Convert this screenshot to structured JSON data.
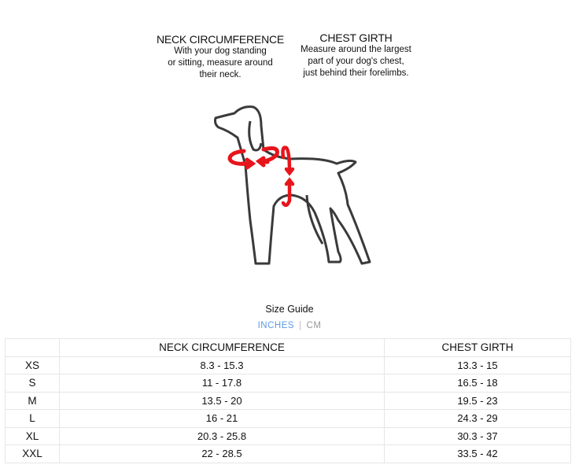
{
  "instructions": {
    "neck": {
      "title": "NECK CIRCUMFERENCE",
      "lines": [
        "With your dog standing",
        "or sitting, measure around",
        "their neck."
      ]
    },
    "chest": {
      "title": "CHEST GIRTH",
      "lines": [
        "Measure around the largest",
        "part of your dog's chest,",
        "just behind their forelimbs."
      ]
    }
  },
  "size_guide": {
    "title": "Size Guide",
    "unit_active": "INCHES",
    "separator": "|",
    "unit_other": "CM",
    "active_color": "#5b9be6"
  },
  "table": {
    "headers": [
      "",
      "NECK CIRCUMFERENCE",
      "CHEST GIRTH"
    ],
    "rows": [
      {
        "size": "XS",
        "neck": "8.3 - 15.3",
        "chest": "13.3 - 15"
      },
      {
        "size": "S",
        "neck": "11 - 17.8",
        "chest": "16.5 - 18"
      },
      {
        "size": "M",
        "neck": "13.5 - 20",
        "chest": "19.5 - 23"
      },
      {
        "size": "L",
        "neck": "16 - 21",
        "chest": "24.3 - 29"
      },
      {
        "size": "XL",
        "neck": "20.3 - 25.8",
        "chest": "30.3 - 37"
      },
      {
        "size": "XXL",
        "neck": "22 - 28.5",
        "chest": "33.5 - 42"
      }
    ]
  },
  "colors": {
    "outline": "#3a3a3a",
    "arrows": "#e8141b"
  }
}
